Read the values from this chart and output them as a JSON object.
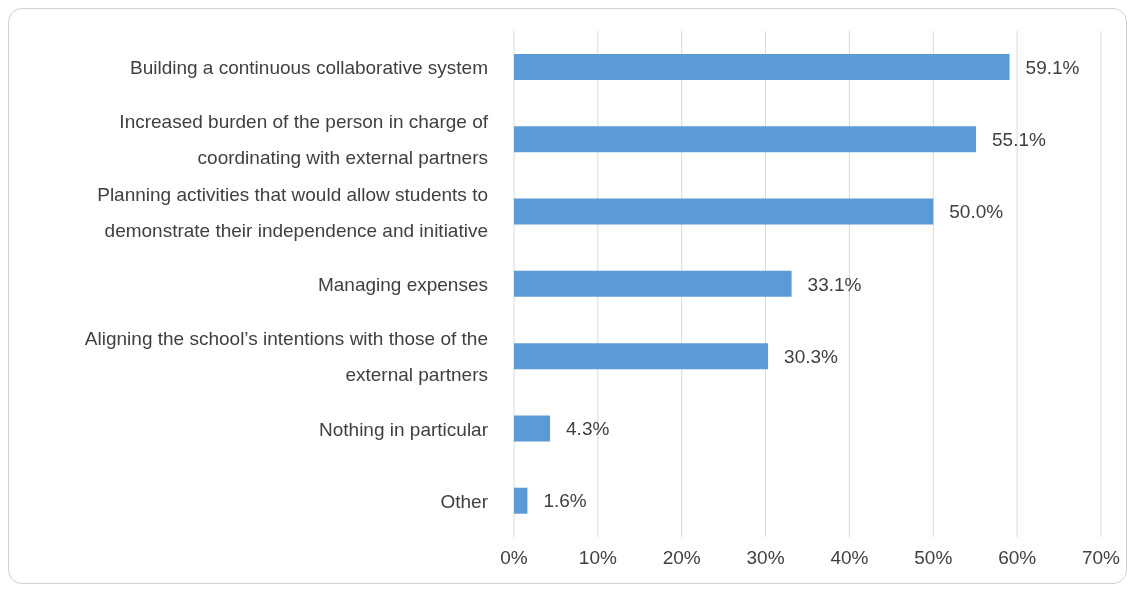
{
  "chart_data": {
    "type": "bar",
    "orientation": "horizontal",
    "categories": [
      "Building a continuous collaborative system",
      "Increased burden of the person in charge of coordinating with external partners",
      "Planning activities that would allow students to demonstrate their independence and initiative",
      "Managing expenses",
      "Aligning the school’s intentions with those of the external partners",
      "Nothing in particular",
      "Other"
    ],
    "values": [
      59.1,
      55.1,
      50.0,
      33.1,
      30.3,
      4.3,
      1.6
    ],
    "value_labels": [
      "59.1%",
      "55.1%",
      "50.0%",
      "33.1%",
      "30.3%",
      "4.3%",
      "1.6%"
    ],
    "color": "#5b9bd5",
    "xlim": [
      0,
      70
    ],
    "xticks": [
      {
        "value": 0,
        "label": "0%"
      },
      {
        "value": 10,
        "label": "10%"
      },
      {
        "value": 20,
        "label": "20%"
      },
      {
        "value": 30,
        "label": "30%"
      },
      {
        "value": 40,
        "label": "40%"
      },
      {
        "value": 50,
        "label": "50%"
      },
      {
        "value": 60,
        "label": "60%"
      },
      {
        "value": 70,
        "label": "70%"
      }
    ],
    "grid": "x"
  }
}
